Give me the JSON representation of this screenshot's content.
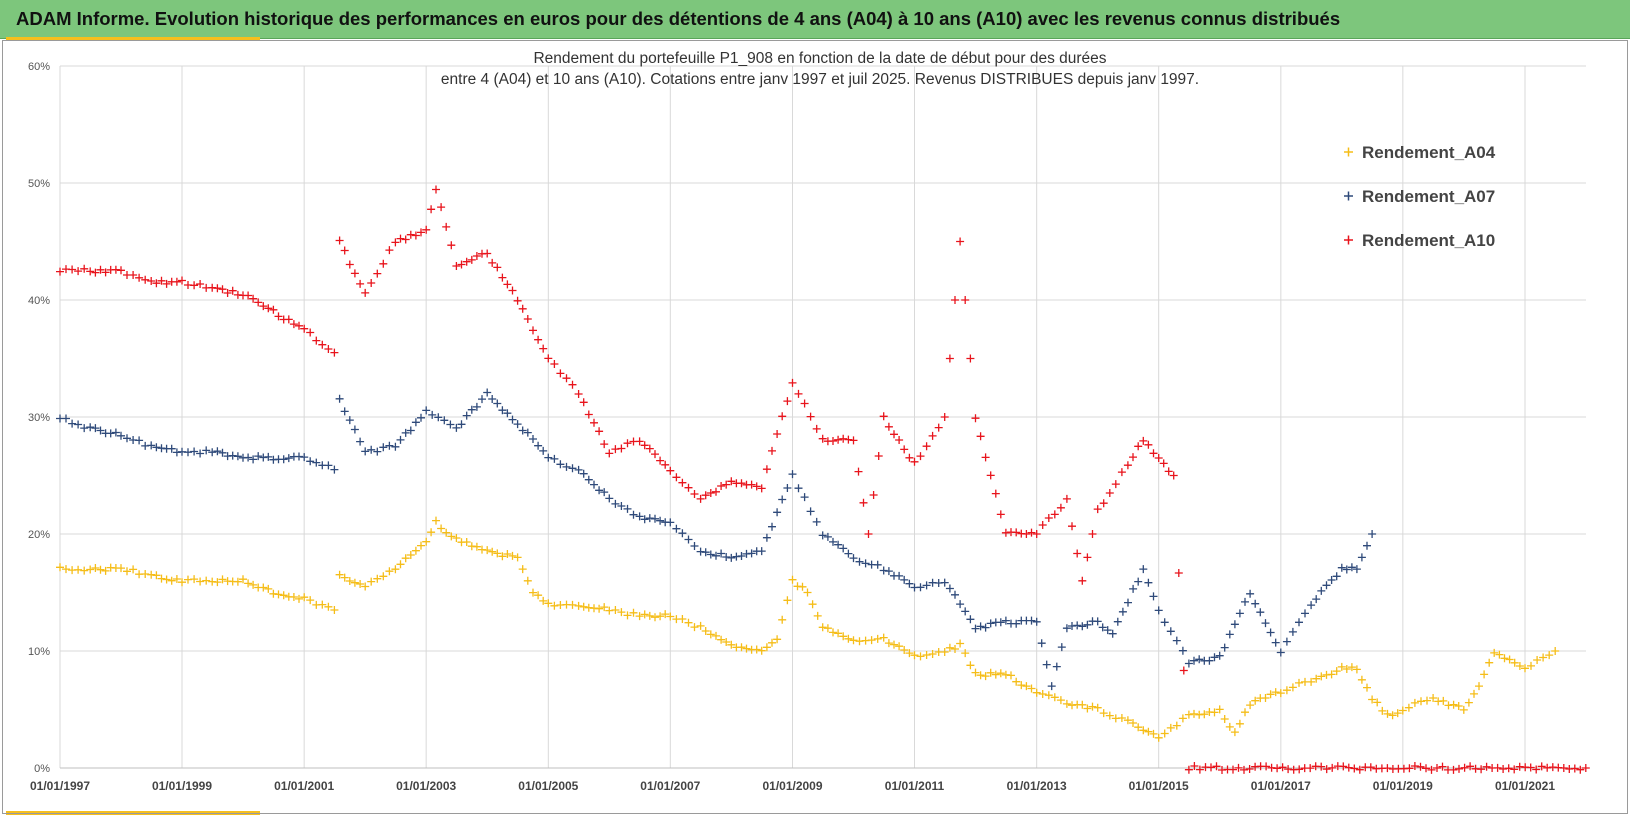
{
  "header": {
    "title": "ADAM Informe. Evolution historique des performances en euros pour des détentions de 4 ans (A04) à 10 ans (A10) avec les revenus connus distribués"
  },
  "colors": {
    "header_bg": "#7dc67c",
    "accent": "#f6bf1e",
    "A04": "#f5bd18",
    "A07": "#2f4a7a",
    "A10": "#e8141c",
    "grid": "#d9d9d9"
  },
  "chart_data": {
    "type": "scatter",
    "title_line1": "Rendement du portefeuille P1_908 en fonction de la date de début pour des durées",
    "title_line2": "entre 4 (A04) et 10 ans (A10). Cotations entre janv 1997 et juil 2025. Revenus DISTRIBUES depuis janv 1997.",
    "marker": "+",
    "x_type": "date",
    "xlim": [
      "1997-01-01",
      "2022-01-01"
    ],
    "x_tick_labels": [
      "01/01/1997",
      "01/01/1999",
      "01/01/2001",
      "01/01/2003",
      "01/01/2005",
      "01/01/2007",
      "01/01/2009",
      "01/01/2011",
      "01/01/2013",
      "01/01/2015",
      "01/01/2017",
      "01/01/2019",
      "01/01/2021"
    ],
    "x_tick_values": [
      "1997-01-01",
      "1999-01-01",
      "2001-01-01",
      "2003-01-01",
      "2005-01-01",
      "2007-01-01",
      "2009-01-01",
      "2011-01-01",
      "2013-01-01",
      "2015-01-01",
      "2017-01-01",
      "2019-01-01",
      "2021-01-01"
    ],
    "ylim": [
      0,
      0.6
    ],
    "y_tick_labels": [
      "0%",
      "10%",
      "20%",
      "30%",
      "40%",
      "50%",
      "60%"
    ],
    "y_tick_values": [
      0,
      0.1,
      0.2,
      0.3,
      0.4,
      0.5,
      0.6
    ],
    "grid": true,
    "legend_position": "top-right",
    "series": [
      {
        "name": "Rendement_A04",
        "x": [
          "1997-01-01",
          "1997-07-01",
          "1998-01-01",
          "1998-07-01",
          "1999-01-01",
          "1999-07-01",
          "2000-01-01",
          "2000-07-01",
          "2001-01-01",
          "2001-07-01",
          "2001-08-01",
          "2002-01-01",
          "2002-07-01",
          "2003-01-01",
          "2003-03-01",
          "2003-07-01",
          "2004-01-01",
          "2004-07-01",
          "2004-10-01",
          "2005-01-01",
          "2005-07-01",
          "2006-01-01",
          "2006-07-01",
          "2007-01-01",
          "2007-07-01",
          "2008-01-01",
          "2008-07-01",
          "2008-10-01",
          "2009-01-01",
          "2009-04-01",
          "2009-07-01",
          "2010-01-01",
          "2010-07-01",
          "2011-01-01",
          "2011-07-01",
          "2011-10-01",
          "2012-01-01",
          "2012-07-01",
          "2013-01-01",
          "2013-07-01",
          "2014-01-01",
          "2014-07-01",
          "2015-01-01",
          "2015-07-01",
          "2016-01-01",
          "2016-04-01",
          "2016-07-01",
          "2017-01-01",
          "2017-07-01",
          "2018-01-01",
          "2018-04-01",
          "2018-07-01",
          "2018-10-01",
          "2019-01-01",
          "2019-07-01",
          "2020-01-01",
          "2020-04-01",
          "2020-07-01",
          "2021-01-01",
          "2021-07-01"
        ],
        "y": [
          0.17,
          0.17,
          0.17,
          0.165,
          0.16,
          0.16,
          0.16,
          0.15,
          0.145,
          0.135,
          0.165,
          0.155,
          0.17,
          0.195,
          0.21,
          0.195,
          0.185,
          0.18,
          0.15,
          0.14,
          0.14,
          0.135,
          0.13,
          0.13,
          0.12,
          0.105,
          0.1,
          0.11,
          0.16,
          0.15,
          0.12,
          0.11,
          0.11,
          0.095,
          0.1,
          0.105,
          0.08,
          0.08,
          0.065,
          0.055,
          0.05,
          0.04,
          0.025,
          0.045,
          0.05,
          0.03,
          0.055,
          0.065,
          0.075,
          0.085,
          0.085,
          0.06,
          0.045,
          0.05,
          0.06,
          0.05,
          0.07,
          0.1,
          0.085,
          0.1
        ]
      },
      {
        "name": "Rendement_A07",
        "x": [
          "1997-01-01",
          "1997-07-01",
          "1998-01-01",
          "1998-07-01",
          "1999-01-01",
          "1999-07-01",
          "2000-01-01",
          "2000-07-01",
          "2001-01-01",
          "2001-07-01",
          "2001-08-01",
          "2002-01-01",
          "2002-07-01",
          "2003-01-01",
          "2003-07-01",
          "2004-01-01",
          "2004-07-01",
          "2005-01-01",
          "2005-07-01",
          "2006-01-01",
          "2006-07-01",
          "2007-01-01",
          "2007-07-01",
          "2008-01-01",
          "2008-07-01",
          "2009-01-01",
          "2009-07-01",
          "2010-01-01",
          "2010-07-01",
          "2011-01-01",
          "2011-07-01",
          "2012-01-01",
          "2012-07-01",
          "2013-01-01",
          "2013-04-01",
          "2013-07-01",
          "2014-01-01",
          "2014-04-01",
          "2014-10-01",
          "2015-01-01",
          "2015-07-01",
          "2016-01-01",
          "2016-07-01",
          "2017-01-01",
          "2017-07-01",
          "2018-01-01",
          "2018-04-01",
          "2018-07-01"
        ],
        "y": [
          0.3,
          0.29,
          0.285,
          0.275,
          0.27,
          0.27,
          0.265,
          0.265,
          0.265,
          0.255,
          0.315,
          0.27,
          0.275,
          0.305,
          0.29,
          0.32,
          0.295,
          0.265,
          0.255,
          0.23,
          0.215,
          0.21,
          0.185,
          0.18,
          0.185,
          0.25,
          0.2,
          0.18,
          0.17,
          0.155,
          0.16,
          0.12,
          0.125,
          0.125,
          0.07,
          0.12,
          0.125,
          0.115,
          0.17,
          0.135,
          0.09,
          0.095,
          0.15,
          0.1,
          0.14,
          0.17,
          0.17,
          0.2
        ]
      },
      {
        "name": "Rendement_A10",
        "x": [
          "1997-01-01",
          "1997-07-01",
          "1998-01-01",
          "1998-07-01",
          "1999-01-01",
          "1999-07-01",
          "2000-01-01",
          "2000-07-01",
          "2001-01-01",
          "2001-07-01",
          "2001-08-01",
          "2002-01-01",
          "2002-07-01",
          "2003-01-01",
          "2003-03-01",
          "2003-07-01",
          "2004-01-01",
          "2004-07-01",
          "2005-01-01",
          "2005-07-01",
          "2006-01-01",
          "2006-07-01",
          "2007-01-01",
          "2007-07-01",
          "2008-01-01",
          "2008-07-01",
          "2009-01-01",
          "2009-07-01",
          "2010-01-01",
          "2010-04-01",
          "2010-07-01",
          "2011-01-01",
          "2011-07-01",
          "2011-10-01",
          "2012-01-01",
          "2012-07-01",
          "2013-01-01",
          "2013-07-01",
          "2013-10-01",
          "2014-01-01",
          "2014-07-01",
          "2014-10-01",
          "2015-01-01",
          "2015-04-01",
          "2015-07-01",
          "2021-12-31"
        ],
        "y": [
          0.425,
          0.425,
          0.425,
          0.415,
          0.415,
          0.41,
          0.405,
          0.39,
          0.375,
          0.355,
          0.45,
          0.405,
          0.45,
          0.46,
          0.495,
          0.43,
          0.44,
          0.4,
          0.35,
          0.32,
          0.27,
          0.28,
          0.255,
          0.23,
          0.245,
          0.24,
          0.33,
          0.28,
          0.28,
          0.2,
          0.3,
          0.26,
          0.3,
          0.45,
          0.3,
          0.2,
          0.2,
          0.23,
          0.16,
          0.22,
          0.26,
          0.28,
          0.265,
          0.25,
          0,
          0
        ]
      }
    ]
  }
}
